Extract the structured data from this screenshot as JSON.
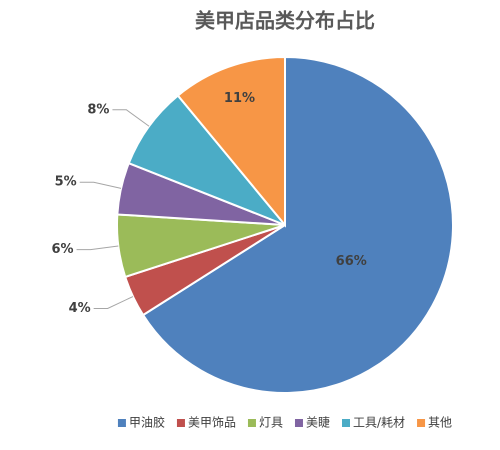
{
  "chart_data": {
    "type": "pie",
    "title": "美甲店品类分布占比",
    "categories": [
      "甲油胶",
      "美甲饰品",
      "灯具",
      "美睫",
      "工具/耗材",
      "其他"
    ],
    "values": [
      66,
      4,
      6,
      5,
      8,
      11
    ],
    "value_labels": [
      "66%",
      "4%",
      "6%",
      "5%",
      "8%",
      "11%"
    ],
    "colors": [
      "#4f81bd",
      "#c0504d",
      "#9bbb59",
      "#8064a2",
      "#4bacc6",
      "#f79646"
    ],
    "legend": "bottom"
  }
}
